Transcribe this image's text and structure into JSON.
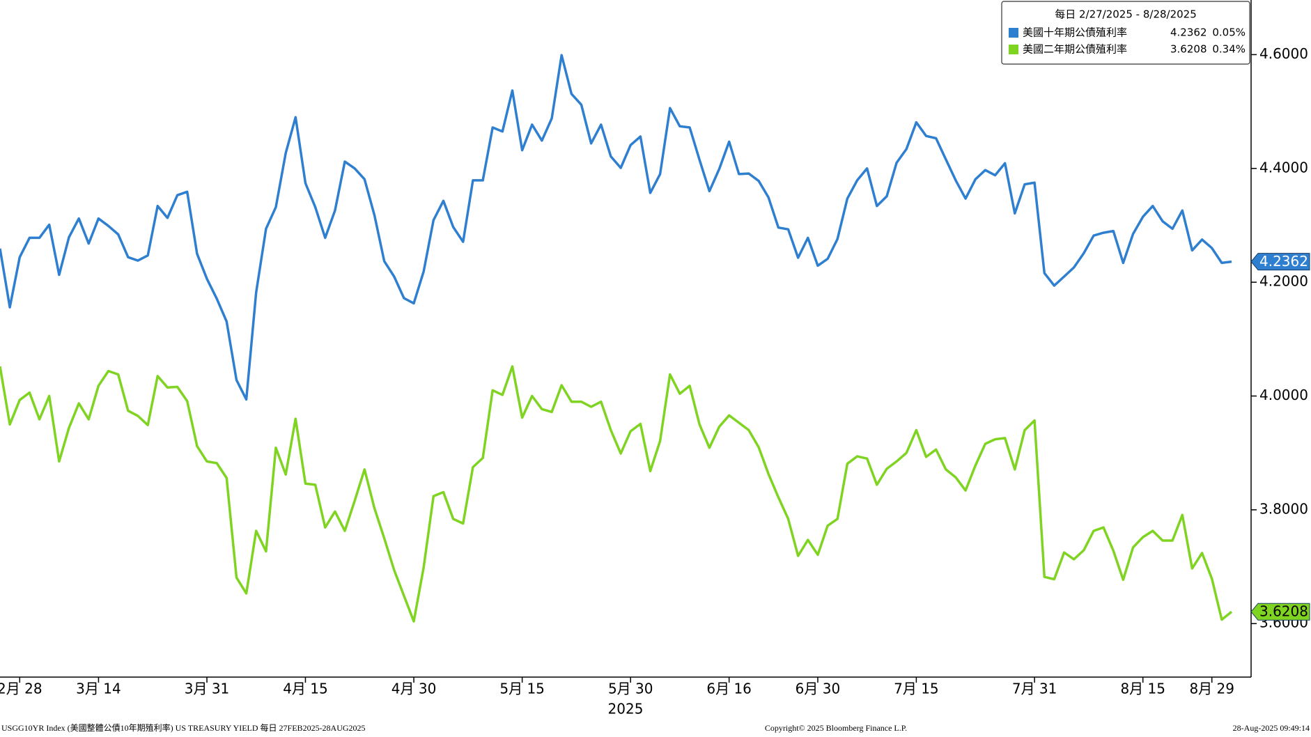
{
  "chart_data": {
    "type": "line",
    "legend_title": "每日 2/27/2025 - 8/28/2025",
    "legend": "top-right",
    "y_axis_side": "right",
    "x_group_label": "2025",
    "footer": {
      "left": "USGG10YR Index (美國整體公債10年期殖利率) US TREASURY YIELD  每日 27FEB2025-28AUG2025",
      "center": "Copyright© 2025 Bloomberg Finance L.P.",
      "right": "28-Aug-2025 09:49:14"
    },
    "ylim": [
      3.506,
      4.696
    ],
    "yticks": [
      {
        "value": 3.6,
        "label": "3.6000"
      },
      {
        "value": 3.8,
        "label": "3.8000"
      },
      {
        "value": 4.0,
        "label": "4.0000"
      },
      {
        "value": 4.2,
        "label": "4.2000"
      },
      {
        "value": 4.4,
        "label": "4.4000"
      },
      {
        "value": 4.6,
        "label": "4.6000"
      }
    ],
    "categories": [
      null,
      null,
      "2月 28",
      null,
      null,
      null,
      null,
      null,
      null,
      null,
      "3月 14",
      null,
      null,
      null,
      null,
      null,
      null,
      null,
      null,
      null,
      null,
      "3月 31",
      null,
      null,
      null,
      null,
      null,
      null,
      null,
      null,
      null,
      "4月 15",
      null,
      null,
      null,
      null,
      null,
      null,
      null,
      null,
      null,
      null,
      "4月 30",
      null,
      null,
      null,
      null,
      null,
      null,
      null,
      null,
      null,
      null,
      "5月 15",
      null,
      null,
      null,
      null,
      null,
      null,
      null,
      null,
      null,
      null,
      "5月 30",
      null,
      null,
      null,
      null,
      null,
      null,
      null,
      null,
      null,
      "6月 16",
      null,
      null,
      null,
      null,
      null,
      null,
      null,
      null,
      "6月 30",
      null,
      null,
      null,
      null,
      null,
      null,
      null,
      null,
      null,
      "7月 15",
      null,
      null,
      null,
      null,
      null,
      null,
      null,
      null,
      null,
      null,
      null,
      "7月 31",
      null,
      null,
      null,
      null,
      null,
      null,
      null,
      null,
      null,
      null,
      "8月 15",
      null,
      null,
      null,
      null,
      null,
      null,
      "8月 29",
      null,
      null
    ],
    "series": [
      {
        "name": "美國十年期公債殖利率",
        "color": "#2f7fd0",
        "text_color": "#ffffff",
        "change": {
          "value": 0.05,
          "label": "0.05%"
        },
        "values": [
          4.259,
          4.156,
          4.244,
          4.278,
          4.278,
          4.301,
          4.213,
          4.279,
          4.312,
          4.268,
          4.312,
          4.299,
          4.284,
          4.244,
          4.238,
          4.247,
          4.334,
          4.313,
          4.353,
          4.359,
          4.25,
          4.206,
          4.171,
          4.131,
          4.028,
          3.994,
          4.182,
          4.294,
          4.332,
          4.427,
          4.49,
          4.374,
          4.332,
          4.278,
          4.326,
          4.412,
          4.4,
          4.381,
          4.318,
          4.237,
          4.21,
          4.172,
          4.163,
          4.219,
          4.309,
          4.343,
          4.297,
          4.271,
          4.379,
          4.379,
          4.472,
          4.465,
          4.537,
          4.432,
          4.477,
          4.449,
          4.488,
          4.599,
          4.531,
          4.512,
          4.444,
          4.477,
          4.421,
          4.401,
          4.441,
          4.456,
          4.357,
          4.39,
          4.506,
          4.474,
          4.472,
          4.415,
          4.36,
          4.399,
          4.447,
          4.39,
          4.391,
          4.378,
          4.349,
          4.296,
          4.293,
          4.243,
          4.278,
          4.229,
          4.241,
          4.276,
          4.347,
          4.379,
          4.4,
          4.334,
          4.351,
          4.41,
          4.434,
          4.481,
          4.457,
          4.453,
          4.416,
          4.379,
          4.347,
          4.381,
          4.397,
          4.388,
          4.409,
          4.321,
          4.372,
          4.375,
          4.216,
          4.194,
          4.21,
          4.226,
          4.251,
          4.282,
          4.287,
          4.29,
          4.234,
          4.285,
          4.315,
          4.334,
          4.307,
          4.294,
          4.326,
          4.256,
          4.275,
          4.26,
          4.234,
          4.2362
        ]
      },
      {
        "name": "美國二年期公債殖利率",
        "color": "#7fd321",
        "text_color": "#000000",
        "change": {
          "value": 0.34,
          "label": "0.34%"
        },
        "values": [
          4.052,
          3.95,
          3.993,
          4.006,
          3.959,
          4.0,
          3.885,
          3.944,
          3.987,
          3.959,
          4.018,
          4.044,
          4.038,
          3.974,
          3.965,
          3.949,
          4.035,
          4.015,
          4.016,
          3.991,
          3.912,
          3.885,
          3.882,
          3.856,
          3.681,
          3.653,
          3.763,
          3.727,
          3.909,
          3.862,
          3.96,
          3.846,
          3.844,
          3.769,
          3.797,
          3.763,
          3.816,
          3.871,
          3.803,
          3.75,
          3.694,
          3.649,
          3.604,
          3.699,
          3.824,
          3.831,
          3.784,
          3.776,
          3.875,
          3.891,
          4.01,
          4.002,
          4.052,
          3.962,
          4.0,
          3.977,
          3.972,
          4.019,
          3.99,
          3.99,
          3.981,
          3.99,
          3.94,
          3.899,
          3.938,
          3.951,
          3.868,
          3.921,
          4.038,
          4.004,
          4.018,
          3.95,
          3.909,
          3.946,
          3.966,
          3.953,
          3.94,
          3.91,
          3.863,
          3.822,
          3.784,
          3.719,
          3.747,
          3.721,
          3.772,
          3.784,
          3.881,
          3.894,
          3.89,
          3.844,
          3.872,
          3.885,
          3.9,
          3.94,
          3.893,
          3.906,
          3.871,
          3.857,
          3.834,
          3.878,
          3.916,
          3.924,
          3.926,
          3.871,
          3.94,
          3.957,
          3.682,
          3.678,
          3.725,
          3.713,
          3.729,
          3.763,
          3.769,
          3.728,
          3.677,
          3.734,
          3.752,
          3.763,
          3.746,
          3.746,
          3.791,
          3.697,
          3.724,
          3.679,
          3.607,
          3.6208
        ]
      }
    ]
  }
}
